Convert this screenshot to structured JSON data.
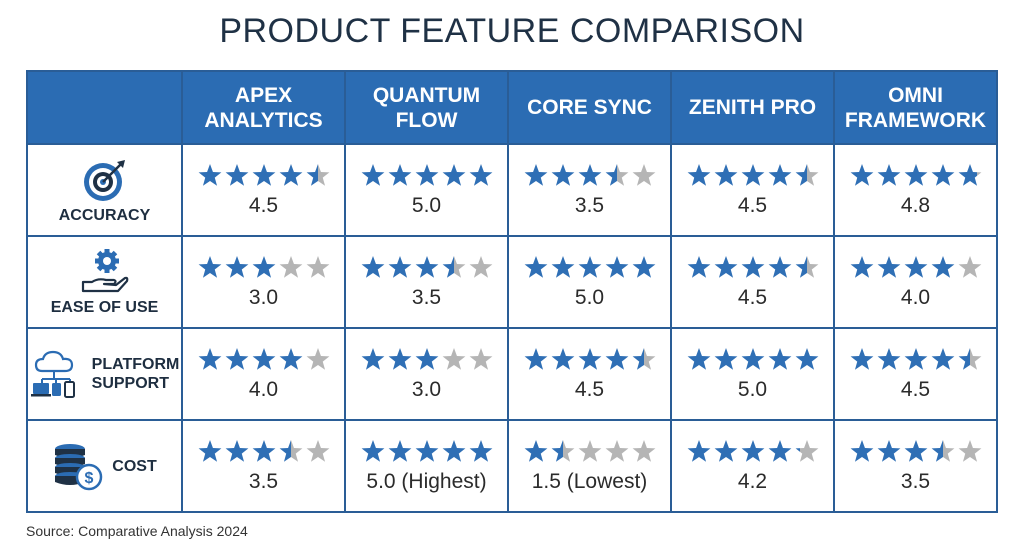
{
  "title": "PRODUCT FEATURE COMPARISON",
  "source": "Source: Comparative Analysis 2024",
  "colors": {
    "header_bg": "#2b6cb3",
    "star_filled": "#2f6fb5",
    "star_empty": "#b5b5b5",
    "border": "#2a5d96"
  },
  "chart_data": {
    "type": "table",
    "title": "PRODUCT FEATURE COMPARISON",
    "columns": [
      {
        "label_lines": [
          "APEX",
          "ANALYTICS"
        ]
      },
      {
        "label_lines": [
          "QUANTUM",
          "FLOW"
        ]
      },
      {
        "label_lines": [
          "CORE SYNC"
        ]
      },
      {
        "label_lines": [
          "ZENITH PRO"
        ]
      },
      {
        "label_lines": [
          "OMNI",
          "FRAMEWORK"
        ]
      }
    ],
    "rows": [
      {
        "feature_lines": [
          "ACCURACY"
        ],
        "icon": "target-icon",
        "cells": [
          {
            "rating": 4.5,
            "label": "4.5"
          },
          {
            "rating": 5.0,
            "label": "5.0"
          },
          {
            "rating": 3.5,
            "label": "3.5"
          },
          {
            "rating": 4.5,
            "label": "4.5"
          },
          {
            "rating": 4.8,
            "label": "4.8"
          }
        ]
      },
      {
        "feature_lines": [
          "EASE OF USE"
        ],
        "icon": "gear-hand-icon",
        "cells": [
          {
            "rating": 3.0,
            "label": "3.0"
          },
          {
            "rating": 3.5,
            "label": "3.5"
          },
          {
            "rating": 5.0,
            "label": "5.0"
          },
          {
            "rating": 4.5,
            "label": "4.5"
          },
          {
            "rating": 4.0,
            "label": "4.0"
          }
        ]
      },
      {
        "feature_lines": [
          "PLATFORM",
          "SUPPORT"
        ],
        "icon": "cloud-devices-icon",
        "cells": [
          {
            "rating": 4.0,
            "label": "4.0"
          },
          {
            "rating": 3.0,
            "label": "3.0"
          },
          {
            "rating": 4.5,
            "label": "4.5"
          },
          {
            "rating": 5.0,
            "label": "5.0"
          },
          {
            "rating": 4.5,
            "label": "4.5"
          }
        ]
      },
      {
        "feature_lines": [
          "COST"
        ],
        "icon": "coins-dollar-icon",
        "cells": [
          {
            "rating": 3.5,
            "label": "3.5"
          },
          {
            "rating": 5.0,
            "label": "5.0 (Highest)"
          },
          {
            "rating": 1.5,
            "label": "1.5 (Lowest)"
          },
          {
            "rating": 4.2,
            "label": "4.2"
          },
          {
            "rating": 3.5,
            "label": "3.5"
          }
        ]
      }
    ]
  }
}
